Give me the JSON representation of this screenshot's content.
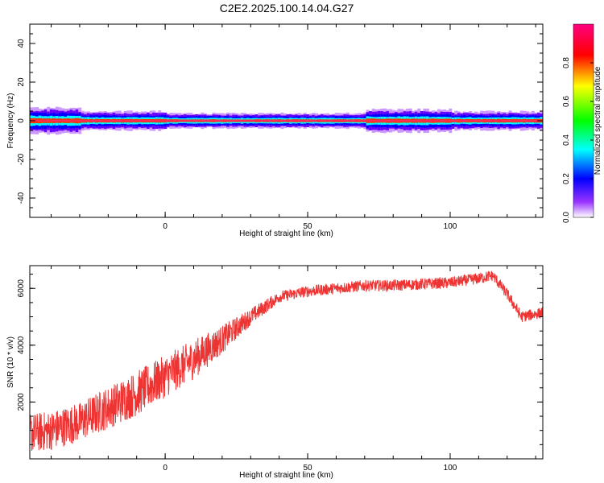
{
  "title": "C2E2.2025.100.14.04.G27",
  "chart_data": [
    {
      "type": "heatmap",
      "xlabel": "Height of straight line (km)",
      "ylabel": "Frequency (Hz)",
      "xlim": [
        -47.5,
        132.5
      ],
      "ylim": [
        -50,
        50
      ],
      "xticks": [
        0,
        50,
        100
      ],
      "yticks": [
        -40,
        -20,
        0,
        20,
        40
      ],
      "colorbar": {
        "label": "Normalized spectral amplitude",
        "ticks": [
          "0.0",
          "0.2",
          "0.4",
          "0.6",
          "0.8"
        ],
        "range": [
          0,
          1
        ]
      },
      "band": {
        "center_freq": 0,
        "segments": [
          {
            "x": [
              -47.5,
              -30
            ],
            "half_width_hz": 3.5
          },
          {
            "x": [
              -30,
              0
            ],
            "half_width_hz": 2.5
          },
          {
            "x": [
              0,
              70
            ],
            "half_width_hz": 2
          },
          {
            "x": [
              70,
              100
            ],
            "half_width_hz": 3
          },
          {
            "x": [
              100,
              132.5
            ],
            "half_width_hz": 2.5
          }
        ],
        "peak_amplitude": 1.0
      }
    },
    {
      "type": "line",
      "xlabel": "Height of straight line (km)",
      "ylabel": "SNR (10 * v/v)",
      "xlim": [
        -47.5,
        132.5
      ],
      "ylim": [
        0,
        6800
      ],
      "xticks": [
        0,
        50,
        100
      ],
      "yticks": [
        2000,
        4000,
        6000
      ],
      "color": "#ee3333",
      "trend": {
        "x": [
          -47.5,
          -40,
          -30,
          -20,
          -10,
          0,
          10,
          20,
          30,
          40,
          50,
          60,
          70,
          80,
          90,
          100,
          110,
          115,
          120,
          125,
          132.5
        ],
        "y": [
          900,
          1000,
          1300,
          1800,
          2300,
          2900,
          3500,
          4200,
          5000,
          5700,
          5900,
          6000,
          6100,
          6100,
          6150,
          6200,
          6350,
          6450,
          5800,
          5000,
          5150
        ]
      },
      "noise": {
        "x": [
          -47.5,
          -30,
          -10,
          10,
          30,
          40,
          132.5
        ],
        "amplitude": [
          700,
          700,
          800,
          700,
          300,
          200,
          200
        ]
      }
    }
  ]
}
